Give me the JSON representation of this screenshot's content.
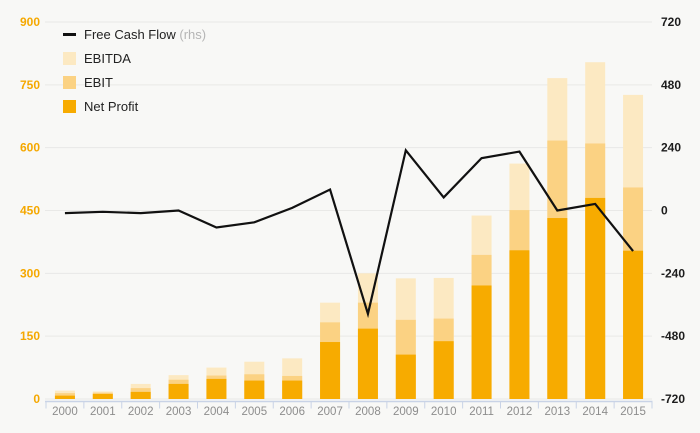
{
  "chart_data": {
    "type": "bar+line",
    "title": "",
    "categories": [
      "2000",
      "2001",
      "2002",
      "2003",
      "2004",
      "2005",
      "2006",
      "2007",
      "2008",
      "2009",
      "2010",
      "2011",
      "2012",
      "2013",
      "2014",
      "2015"
    ],
    "series": [
      {
        "name": "EBITDA",
        "type": "bar",
        "axis": "left",
        "color": "#fce9c2",
        "values": [
          20,
          18,
          36,
          57,
          75,
          89,
          97,
          230,
          300,
          288,
          289,
          438,
          562,
          766,
          804,
          726
        ]
      },
      {
        "name": "EBIT",
        "type": "bar",
        "axis": "left",
        "color": "#fbd283",
        "values": [
          14,
          15,
          26,
          46,
          56,
          59,
          55,
          183,
          230,
          189,
          192,
          344,
          451,
          617,
          610,
          505
        ]
      },
      {
        "name": "Net Profit",
        "type": "bar",
        "axis": "left",
        "color": "#f7ab00",
        "values": [
          8,
          12,
          17,
          36,
          48,
          44,
          44,
          136,
          168,
          106,
          138,
          271,
          355,
          432,
          480,
          354
        ]
      },
      {
        "name": "Free Cash Flow",
        "type": "line",
        "axis": "right",
        "color": "#111111",
        "values": [
          -10,
          -5,
          -10,
          0,
          -65,
          -45,
          10,
          80,
          -395,
          230,
          50,
          200,
          225,
          0,
          25,
          -155
        ]
      }
    ],
    "left_axis": {
      "range": [
        0,
        900
      ],
      "ticks": [
        0,
        150,
        300,
        450,
        600,
        750,
        900
      ],
      "label_color": "#f5a800"
    },
    "right_axis": {
      "range": [
        -720,
        720
      ],
      "ticks": [
        -720,
        -480,
        -240,
        0,
        240,
        480,
        720
      ],
      "label_color": "#1d1d1d"
    },
    "x_axis": {
      "label_color": "#8d8d8d",
      "line_color": "#c9d3e6"
    },
    "grid": {
      "show": true,
      "color": "#e9e9e7"
    },
    "legend_position": "top-left",
    "legend": [
      {
        "label": "Free Cash Flow",
        "suffix": " (rhs)",
        "marker": "line",
        "color": "#111111"
      },
      {
        "label": "EBITDA",
        "suffix": "",
        "marker": "square",
        "color": "#fce9c2"
      },
      {
        "label": "EBIT",
        "suffix": "",
        "marker": "square",
        "color": "#fbd283"
      },
      {
        "label": "Net Profit",
        "suffix": "",
        "marker": "square",
        "color": "#f7ab00"
      }
    ]
  }
}
